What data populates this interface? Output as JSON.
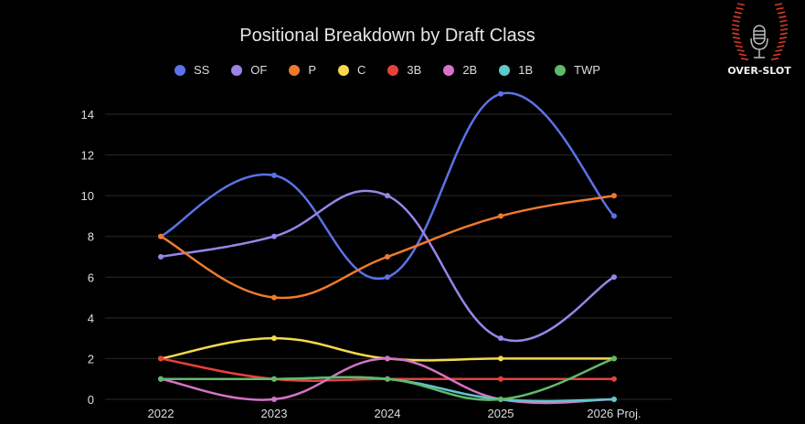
{
  "chart_data": {
    "type": "line",
    "title": "Positional Breakdown by Draft Class",
    "categories": [
      "2022",
      "2023",
      "2024",
      "2025",
      "2026 Proj."
    ],
    "ylim": [
      0,
      14
    ],
    "yticks": [
      "0",
      "2",
      "4",
      "6",
      "8",
      "10",
      "12",
      "14"
    ],
    "grid": true,
    "legend_position": "top",
    "series": [
      {
        "name": "SS",
        "color": "#5b72e8",
        "values": [
          8,
          11,
          6,
          15,
          9
        ]
      },
      {
        "name": "OF",
        "color": "#9b84e8",
        "values": [
          7,
          8,
          10,
          3,
          6
        ]
      },
      {
        "name": "P",
        "color": "#ef7a2e",
        "values": [
          8,
          5,
          7,
          9,
          10
        ]
      },
      {
        "name": "C",
        "color": "#f5d94e",
        "values": [
          2,
          3,
          2,
          2,
          2
        ]
      },
      {
        "name": "3B",
        "color": "#e8413a",
        "values": [
          2,
          1,
          1,
          1,
          1
        ]
      },
      {
        "name": "2B",
        "color": "#d673c8",
        "values": [
          1,
          0,
          2,
          0,
          0
        ]
      },
      {
        "name": "1B",
        "color": "#5ec8cc",
        "values": [
          1,
          1,
          1,
          0,
          0
        ]
      },
      {
        "name": "TWP",
        "color": "#5fbb6a",
        "values": [
          1,
          1,
          1,
          0,
          2
        ]
      }
    ]
  },
  "logo": {
    "text": "OVER-SLOT"
  }
}
